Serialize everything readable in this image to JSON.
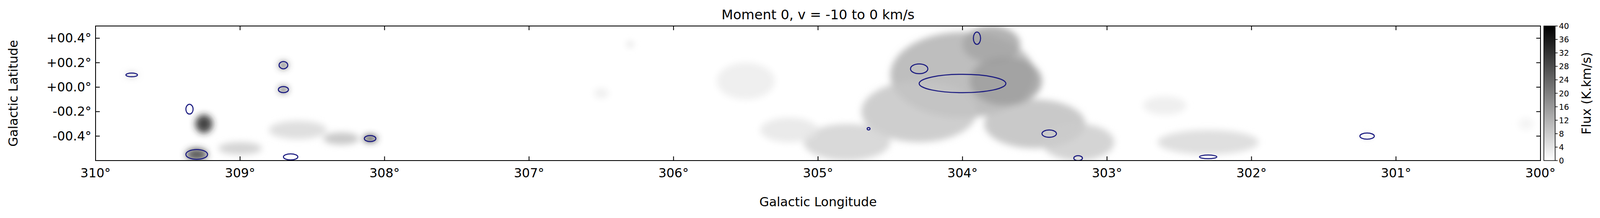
{
  "chart_data": {
    "type": "map",
    "title": "Moment 0, v = -10 to 0 km/s",
    "x_label": "Galactic Longitude",
    "y_label": "Galactic Latitude",
    "xlim": [
      310,
      300
    ],
    "ylim": [
      -0.6,
      0.5
    ],
    "xticks": [
      {
        "value": 310,
        "label": "310°"
      },
      {
        "value": 309,
        "label": "309°"
      },
      {
        "value": 308,
        "label": "308°"
      },
      {
        "value": 307,
        "label": "307°"
      },
      {
        "value": 306,
        "label": "306°"
      },
      {
        "value": 305,
        "label": "305°"
      },
      {
        "value": 304,
        "label": "304°"
      },
      {
        "value": 303,
        "label": "303°"
      },
      {
        "value": 302,
        "label": "302°"
      },
      {
        "value": 301,
        "label": "301°"
      },
      {
        "value": 300,
        "label": "300°"
      }
    ],
    "yticks": [
      {
        "value": 0.4,
        "label": "+00.4°"
      },
      {
        "value": 0.2,
        "label": "+00.2°"
      },
      {
        "value": 0,
        "label": "+00.0°"
      },
      {
        "value": -0.2,
        "label": "-00.2°"
      },
      {
        "value": -0.4,
        "label": "-00.4°"
      }
    ],
    "colorbar": {
      "label": "Flux (K.km/s)",
      "range": [
        0,
        40
      ],
      "ticks": [
        0,
        4,
        8,
        12,
        16,
        20,
        24,
        28,
        32,
        36,
        40
      ]
    },
    "blobs": [
      {
        "l": 304.0,
        "b": 0.1,
        "width": 1.0,
        "height": 0.7,
        "flux": 12
      },
      {
        "l": 303.8,
        "b": 0.35,
        "width": 0.4,
        "height": 0.3,
        "flux": 14
      },
      {
        "l": 304.3,
        "b": -0.2,
        "width": 0.8,
        "height": 0.5,
        "flux": 9
      },
      {
        "l": 303.5,
        "b": -0.3,
        "width": 0.7,
        "height": 0.4,
        "flux": 10
      },
      {
        "l": 303.2,
        "b": -0.45,
        "width": 0.5,
        "height": 0.3,
        "flux": 8
      },
      {
        "l": 304.8,
        "b": -0.45,
        "width": 0.6,
        "height": 0.3,
        "flux": 7
      },
      {
        "l": 303.7,
        "b": 0.05,
        "width": 0.5,
        "height": 0.4,
        "flux": 15
      },
      {
        "l": 302.3,
        "b": -0.45,
        "width": 0.7,
        "height": 0.2,
        "flux": 6
      },
      {
        "l": 305.5,
        "b": 0.05,
        "width": 0.4,
        "height": 0.3,
        "flux": 3
      },
      {
        "l": 305.2,
        "b": -0.35,
        "width": 0.4,
        "height": 0.2,
        "flux": 4
      },
      {
        "l": 302.6,
        "b": -0.15,
        "width": 0.3,
        "height": 0.15,
        "flux": 3
      },
      {
        "l": 306.5,
        "b": -0.05,
        "width": 0.1,
        "height": 0.08,
        "flux": 3
      },
      {
        "l": 306.3,
        "b": 0.35,
        "width": 0.05,
        "height": 0.05,
        "flux": 5
      },
      {
        "l": 309.25,
        "b": -0.3,
        "width": 0.12,
        "height": 0.15,
        "flux": 34
      },
      {
        "l": 309.3,
        "b": -0.55,
        "width": 0.15,
        "height": 0.1,
        "flux": 30
      },
      {
        "l": 308.7,
        "b": -0.02,
        "width": 0.06,
        "height": 0.05,
        "flux": 32
      },
      {
        "l": 308.7,
        "b": 0.18,
        "width": 0.06,
        "height": 0.06,
        "flux": 28
      },
      {
        "l": 308.1,
        "b": -0.42,
        "width": 0.1,
        "height": 0.06,
        "flux": 30
      },
      {
        "l": 308.3,
        "b": -0.42,
        "width": 0.25,
        "height": 0.1,
        "flux": 10
      },
      {
        "l": 308.6,
        "b": -0.35,
        "width": 0.4,
        "height": 0.15,
        "flux": 6
      },
      {
        "l": 309.0,
        "b": -0.5,
        "width": 0.3,
        "height": 0.1,
        "flux": 8
      },
      {
        "l": 309.75,
        "b": 0.1,
        "width": 0.08,
        "height": 0.03,
        "flux": 12
      },
      {
        "l": 301.2,
        "b": -0.4,
        "width": 0.08,
        "height": 0.04,
        "flux": 4
      },
      {
        "l": 300.1,
        "b": -0.3,
        "width": 0.1,
        "height": 0.1,
        "flux": 2
      }
    ],
    "contours": [
      {
        "l": 309.75,
        "b": 0.1,
        "width": 0.08,
        "height": 0.03
      },
      {
        "l": 309.35,
        "b": -0.18,
        "width": 0.05,
        "height": 0.08
      },
      {
        "l": 309.3,
        "b": -0.55,
        "width": 0.15,
        "height": 0.08
      },
      {
        "l": 308.7,
        "b": -0.02,
        "width": 0.07,
        "height": 0.05
      },
      {
        "l": 308.7,
        "b": 0.18,
        "width": 0.06,
        "height": 0.06
      },
      {
        "l": 308.1,
        "b": -0.42,
        "width": 0.08,
        "height": 0.05
      },
      {
        "l": 308.65,
        "b": -0.57,
        "width": 0.1,
        "height": 0.05
      },
      {
        "l": 304.0,
        "b": 0.03,
        "width": 0.6,
        "height": 0.15
      },
      {
        "l": 304.3,
        "b": 0.15,
        "width": 0.12,
        "height": 0.08
      },
      {
        "l": 303.9,
        "b": 0.4,
        "width": 0.05,
        "height": 0.1
      },
      {
        "l": 303.4,
        "b": -0.38,
        "width": 0.1,
        "height": 0.06
      },
      {
        "l": 303.2,
        "b": -0.58,
        "width": 0.06,
        "height": 0.04
      },
      {
        "l": 302.3,
        "b": -0.57,
        "width": 0.12,
        "height": 0.03
      },
      {
        "l": 301.2,
        "b": -0.4,
        "width": 0.1,
        "height": 0.05
      },
      {
        "l": 304.65,
        "b": -0.34,
        "width": 0.02,
        "height": 0.02
      }
    ],
    "color": "#1a1a80"
  }
}
